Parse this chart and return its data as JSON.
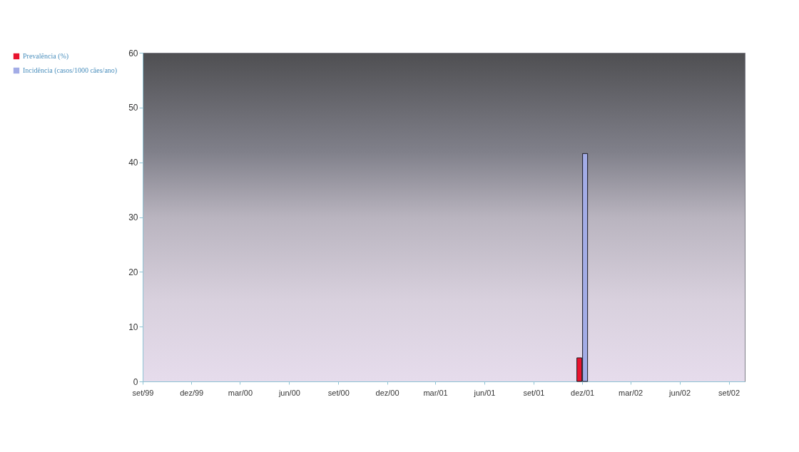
{
  "chart_data": {
    "type": "bar",
    "x": [
      "2001-12"
    ],
    "series": [
      {
        "name": "Prevalência (%)",
        "color": "#e8132e",
        "values": [
          4.3
        ]
      },
      {
        "name": "Incidência (casos/1000 cães/ano)",
        "color": "#a3ace6",
        "values": [
          41.6
        ]
      }
    ],
    "xlim": [
      "1999-09",
      "2002-10"
    ],
    "xticks": [
      {
        "value": "1999-09",
        "label": "set/99"
      },
      {
        "value": "1999-12",
        "label": "dez/99"
      },
      {
        "value": "2000-03",
        "label": "mar/00"
      },
      {
        "value": "2000-06",
        "label": "jun/00"
      },
      {
        "value": "2000-09",
        "label": "set/00"
      },
      {
        "value": "2000-12",
        "label": "dez/00"
      },
      {
        "value": "2001-03",
        "label": "mar/01"
      },
      {
        "value": "2001-06",
        "label": "jun/01"
      },
      {
        "value": "2001-09",
        "label": "set/01"
      },
      {
        "value": "2001-12",
        "label": "dez/01"
      },
      {
        "value": "2002-03",
        "label": "mar/02"
      },
      {
        "value": "2002-06",
        "label": "jun/02"
      },
      {
        "value": "2002-09",
        "label": "set/02"
      }
    ],
    "ylim": [
      0,
      60
    ],
    "yticks": [
      0,
      10,
      20,
      30,
      40,
      50,
      60
    ],
    "grid": false,
    "legend": "left"
  }
}
